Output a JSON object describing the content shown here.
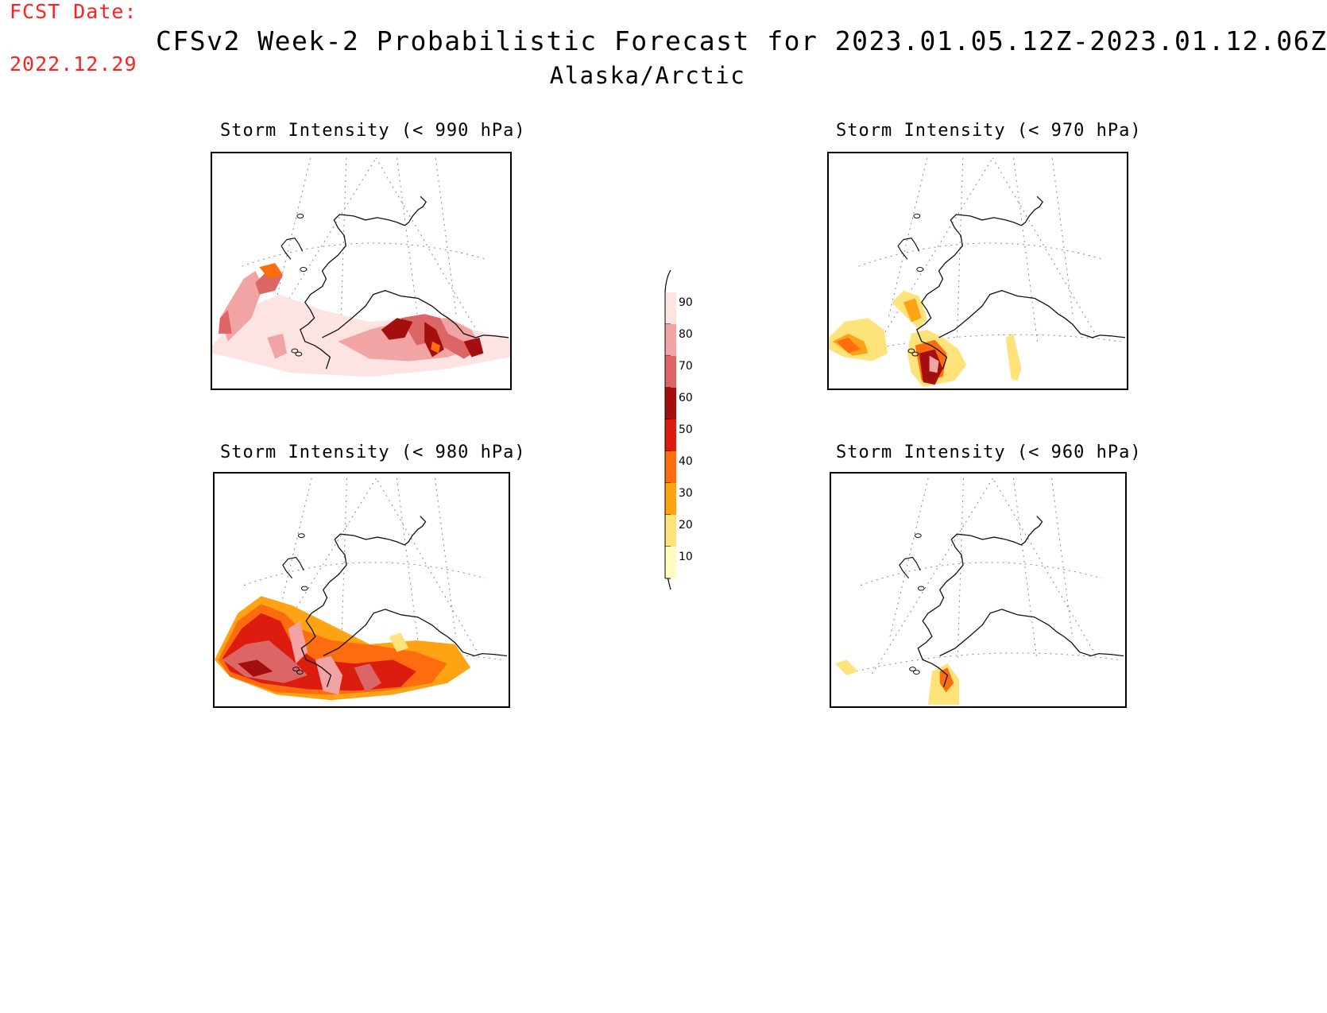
{
  "header": {
    "fcst_label": "FCST Date:",
    "fcst_date": "2022.12.29",
    "title": "CFSv2 Week-2 Probabilistic Forecast for 2023.01.05.12Z-2023.01.12.06Z",
    "region": "Alaska/Arctic"
  },
  "panels": [
    {
      "id": "p990",
      "title": "Storm Intensity (< 990 hPa)",
      "threshold_hPa": 990
    },
    {
      "id": "p970",
      "title": "Storm Intensity (< 970 hPa)",
      "threshold_hPa": 970
    },
    {
      "id": "p980",
      "title": "Storm Intensity (< 980 hPa)",
      "threshold_hPa": 980
    },
    {
      "id": "p960",
      "title": "Storm Intensity (< 960 hPa)",
      "threshold_hPa": 960
    }
  ],
  "colorbar": {
    "labels": [
      "90",
      "80",
      "70",
      "60",
      "50",
      "40",
      "30",
      "20",
      "10"
    ],
    "colors": [
      "#fde4e2",
      "#f2a3a4",
      "#dc6566",
      "#a30f0f",
      "#dc1c0e",
      "#fd6c0e",
      "#fda314",
      "#fde37a",
      "#fffcc0"
    ],
    "unit_note": ""
  },
  "legend_colors": {
    "10": "#fffcc0",
    "20": "#fde37a",
    "30": "#fda314",
    "40": "#fd6c0e",
    "50": "#dc1c0e",
    "60": "#a30f0f",
    "70": "#dc6566",
    "80": "#f2a3a4",
    "90": "#fde4e2"
  }
}
